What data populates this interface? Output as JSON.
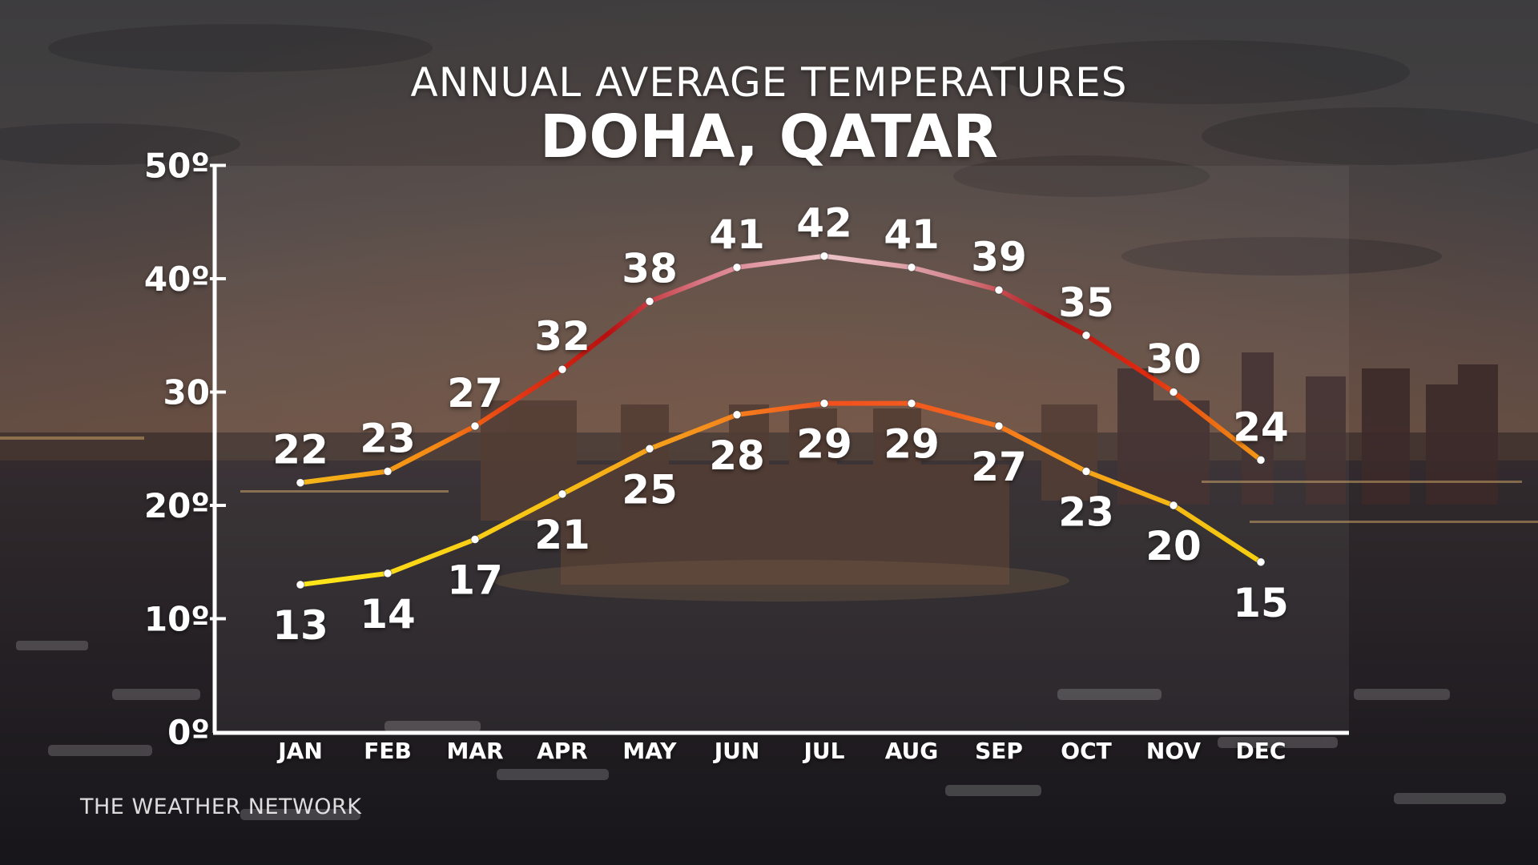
{
  "header": {
    "title": "ANNUAL AVERAGE TEMPERATURES",
    "subtitle": "DOHA, QATAR"
  },
  "brand": {
    "name": "THE WEATHER NETWORK"
  },
  "colors": {
    "high_line_low_end": "#d81d0c",
    "high_line_peak": "#e8b6bc",
    "high_line_dark": "#b00f0f",
    "high_line_warm": "#f59a14",
    "low_line_cool": "#f5d60f",
    "low_line_warm": "#f0591e",
    "axis": "#ffffff",
    "panel": "rgba(255,255,255,0.05)"
  },
  "chart_data": {
    "type": "line",
    "categories": [
      "JAN",
      "FEB",
      "MAR",
      "APR",
      "MAY",
      "JUN",
      "JUL",
      "AUG",
      "SEP",
      "OCT",
      "NOV",
      "DEC"
    ],
    "series": [
      {
        "key": "high",
        "values": [
          22,
          23,
          27,
          32,
          38,
          41,
          42,
          41,
          39,
          35,
          30,
          24
        ]
      },
      {
        "key": "low",
        "values": [
          13,
          14,
          17,
          21,
          25,
          28,
          29,
          29,
          27,
          23,
          20,
          15
        ]
      }
    ],
    "y_ticks": [
      {
        "value": 0,
        "label": "0º"
      },
      {
        "value": 10,
        "label": "10º"
      },
      {
        "value": 20,
        "label": "20º"
      },
      {
        "value": 30,
        "label": "30"
      },
      {
        "value": 40,
        "label": "40º"
      },
      {
        "value": 50,
        "label": "50º"
      }
    ],
    "ylim": [
      0,
      50
    ],
    "grid": false,
    "legend": "none",
    "data_labels": true
  }
}
